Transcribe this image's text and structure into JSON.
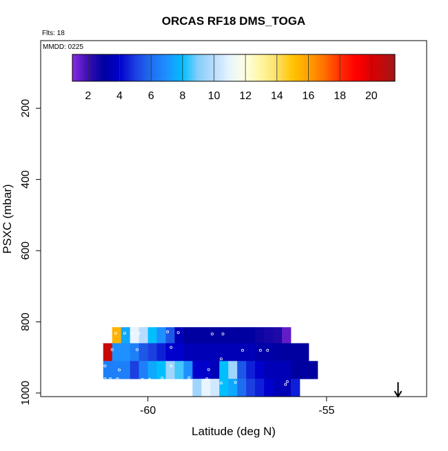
{
  "chart_data": {
    "type": "heatmap",
    "title": "ORCAS RF18 DMS_TOGA",
    "annotations": {
      "flights": "Flts: 18",
      "date": "MMDD: 0225"
    },
    "xlabel": "Latitude (deg N)",
    "ylabel": "PSXC (mbar)",
    "xlim": [
      -63,
      -52.2
    ],
    "ylim": [
      1010,
      10
    ],
    "x_ticks": [
      -60,
      -55
    ],
    "y_ticks": [
      200,
      400,
      600,
      800,
      1000
    ],
    "colorbar": {
      "range": [
        1,
        21.5
      ],
      "ticks": [
        2,
        4,
        6,
        8,
        10,
        12,
        14,
        16,
        18,
        20
      ]
    },
    "cell_width_deg": 0.25,
    "rows": [
      {
        "p_top": 815,
        "p_bottom": 860,
        "lat_start": -61.0,
        "values": [
          15.5,
          7.5,
          11,
          10,
          8,
          7,
          5.5,
          3.5,
          3,
          3,
          3,
          3,
          3,
          3,
          3,
          3,
          2.8,
          2.6,
          2.5,
          1.5
        ]
      },
      {
        "p_top": 860,
        "p_bottom": 910,
        "lat_start": -61.25,
        "values": [
          20.5,
          7,
          7,
          6.5,
          5.5,
          5,
          4.5,
          4,
          4,
          3.5,
          3.5,
          3.5,
          3.5,
          3.5,
          3.5,
          3.5,
          3.5,
          3.2,
          3.2,
          3,
          3,
          3,
          3
        ]
      },
      {
        "p_top": 910,
        "p_bottom": 960,
        "lat_start": -61.25,
        "values": [
          6.5,
          6.5,
          6.5,
          5,
          6.5,
          7.5,
          8,
          9.5,
          8.5,
          7,
          4,
          4,
          3.5,
          8,
          9.5,
          5.5,
          4.5,
          4,
          3.5,
          3.5,
          3.5,
          3,
          3,
          3
        ]
      },
      {
        "p_top": 960,
        "p_bottom": 1010,
        "lat_start": -58.75,
        "values": [
          9.5,
          11,
          10.5,
          8,
          7.5,
          6,
          5,
          4.5,
          4,
          3.5,
          3.5,
          4.5
        ]
      }
    ],
    "sample_points": [
      [
        -60.9,
        832
      ],
      [
        -60.65,
        832
      ],
      [
        -60.45,
        832
      ],
      [
        -60.25,
        832
      ],
      [
        -59.45,
        828
      ],
      [
        -59.15,
        830
      ],
      [
        -58.2,
        834
      ],
      [
        -57.9,
        834
      ],
      [
        -61.0,
        878
      ],
      [
        -60.3,
        878
      ],
      [
        -59.35,
        872
      ],
      [
        -57.35,
        880
      ],
      [
        -56.85,
        880
      ],
      [
        -56.65,
        880
      ],
      [
        -57.95,
        904
      ],
      [
        -60.8,
        935
      ],
      [
        -61.2,
        924
      ],
      [
        -59.35,
        924
      ],
      [
        -58.3,
        934
      ],
      [
        -61.2,
        960
      ],
      [
        -61.05,
        960
      ],
      [
        -60.85,
        960
      ],
      [
        -60.15,
        962
      ],
      [
        -59.95,
        962
      ],
      [
        -59.6,
        958
      ],
      [
        -58.85,
        957
      ],
      [
        -58.35,
        960
      ],
      [
        -57.95,
        972
      ],
      [
        -57.55,
        970
      ],
      [
        -56.15,
        976
      ],
      [
        -56.1,
        968
      ]
    ],
    "arrow_lat": -53.0
  }
}
